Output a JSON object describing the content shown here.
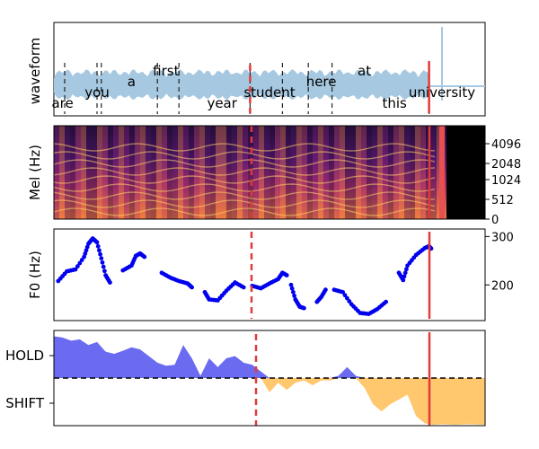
{
  "chart_data": [
    {
      "type": "area",
      "panel": "waveform",
      "ylabel": "waveform",
      "colors": {
        "wave": "#a6c8e0",
        "marker": "#e03a3a",
        "divider": "#222222"
      },
      "words": [
        {
          "text": "are",
          "x": 0.02
        },
        {
          "text": "you",
          "x": 0.1
        },
        {
          "text": "a",
          "x": 0.18
        },
        {
          "text": "first",
          "x": 0.26
        },
        {
          "text": "year",
          "x": 0.39
        },
        {
          "text": "student",
          "x": 0.5
        },
        {
          "text": "here",
          "x": 0.62
        },
        {
          "text": "at",
          "x": 0.72
        },
        {
          "text": "this",
          "x": 0.79
        },
        {
          "text": "university",
          "x": 0.9
        }
      ],
      "word_boundaries": [
        0.025,
        0.1,
        0.11,
        0.24,
        0.29,
        0.455,
        0.53,
        0.59,
        0.645,
        0.87
      ],
      "marker_dashed": 0.455,
      "marker_solid": 0.87
    },
    {
      "type": "heatmap",
      "panel": "mel-spectrogram",
      "ylabel": "Mel (Hz)",
      "yticks": [
        "0",
        "512",
        "1024",
        "2048",
        "4096"
      ]
    },
    {
      "type": "scatter",
      "panel": "f0",
      "ylabel": "F0 (Hz)",
      "yticks": [
        200,
        300
      ],
      "ylim": [
        130,
        310
      ],
      "color": "#0000ee",
      "segments": [
        [
          [
            0.01,
            208
          ],
          [
            0.03,
            228
          ],
          [
            0.05,
            232
          ],
          [
            0.07,
            258
          ],
          [
            0.08,
            285
          ],
          [
            0.09,
            296
          ],
          [
            0.1,
            288
          ],
          [
            0.11,
            255
          ],
          [
            0.12,
            220
          ],
          [
            0.13,
            205
          ]
        ],
        [
          [
            0.16,
            230
          ],
          [
            0.18,
            240
          ],
          [
            0.19,
            260
          ],
          [
            0.2,
            265
          ],
          [
            0.21,
            258
          ]
        ],
        [
          [
            0.25,
            225
          ],
          [
            0.27,
            215
          ],
          [
            0.29,
            208
          ],
          [
            0.31,
            203
          ],
          [
            0.32,
            195
          ]
        ],
        [
          [
            0.35,
            185
          ],
          [
            0.36,
            170
          ],
          [
            0.38,
            168
          ],
          [
            0.4,
            188
          ],
          [
            0.42,
            205
          ],
          [
            0.44,
            195
          ]
        ],
        [
          [
            0.46,
            198
          ],
          [
            0.48,
            193
          ],
          [
            0.5,
            203
          ],
          [
            0.52,
            212
          ],
          [
            0.53,
            225
          ],
          [
            0.54,
            220
          ]
        ],
        [
          [
            0.55,
            200
          ],
          [
            0.56,
            170
          ],
          [
            0.57,
            155
          ],
          [
            0.58,
            152
          ]
        ],
        [
          [
            0.61,
            165
          ],
          [
            0.62,
            175
          ],
          [
            0.63,
            190
          ]
        ],
        [
          [
            0.65,
            190
          ],
          [
            0.67,
            185
          ],
          [
            0.69,
            160
          ],
          [
            0.71,
            142
          ],
          [
            0.73,
            140
          ],
          [
            0.75,
            150
          ],
          [
            0.77,
            165
          ]
        ],
        [
          [
            0.8,
            225
          ],
          [
            0.81,
            210
          ],
          [
            0.82,
            240
          ],
          [
            0.84,
            262
          ],
          [
            0.86,
            276
          ],
          [
            0.87,
            280
          ],
          [
            0.875,
            275
          ]
        ]
      ],
      "marker_dashed": 0.455,
      "marker_solid": 0.87
    },
    {
      "type": "area",
      "panel": "turn-taking",
      "yticks": [
        "HOLD",
        "SHIFT"
      ],
      "ylim": [
        -1,
        1
      ],
      "colors": {
        "hold": "#5b5bf0",
        "shift": "#ffc15e"
      },
      "points": [
        [
          0.0,
          0.95
        ],
        [
          0.02,
          0.92
        ],
        [
          0.04,
          0.85
        ],
        [
          0.06,
          0.88
        ],
        [
          0.08,
          0.75
        ],
        [
          0.1,
          0.82
        ],
        [
          0.12,
          0.6
        ],
        [
          0.14,
          0.55
        ],
        [
          0.16,
          0.62
        ],
        [
          0.18,
          0.7
        ],
        [
          0.2,
          0.65
        ],
        [
          0.22,
          0.5
        ],
        [
          0.24,
          0.35
        ],
        [
          0.26,
          0.28
        ],
        [
          0.28,
          0.3
        ],
        [
          0.3,
          0.75
        ],
        [
          0.32,
          0.45
        ],
        [
          0.34,
          0.05
        ],
        [
          0.36,
          0.45
        ],
        [
          0.38,
          0.25
        ],
        [
          0.4,
          0.45
        ],
        [
          0.42,
          0.5
        ],
        [
          0.44,
          0.35
        ],
        [
          0.46,
          0.3
        ],
        [
          0.48,
          0.15
        ],
        [
          0.5,
          -0.3
        ],
        [
          0.52,
          -0.1
        ],
        [
          0.54,
          -0.25
        ],
        [
          0.56,
          -0.1
        ],
        [
          0.58,
          -0.05
        ],
        [
          0.6,
          -0.15
        ],
        [
          0.62,
          -0.05
        ],
        [
          0.64,
          -0.05
        ],
        [
          0.66,
          0.05
        ],
        [
          0.68,
          0.25
        ],
        [
          0.7,
          0.05
        ],
        [
          0.72,
          -0.2
        ],
        [
          0.74,
          -0.55
        ],
        [
          0.76,
          -0.7
        ],
        [
          0.78,
          -0.55
        ],
        [
          0.8,
          -0.45
        ],
        [
          0.82,
          -0.35
        ],
        [
          0.84,
          -0.8
        ],
        [
          0.86,
          -0.95
        ],
        [
          0.88,
          -0.98
        ],
        [
          0.9,
          -0.97
        ],
        [
          0.93,
          -0.98
        ],
        [
          0.96,
          -0.97
        ],
        [
          1.0,
          -0.98
        ]
      ],
      "marker_dashed": 0.47,
      "marker_solid": 0.875
    }
  ]
}
